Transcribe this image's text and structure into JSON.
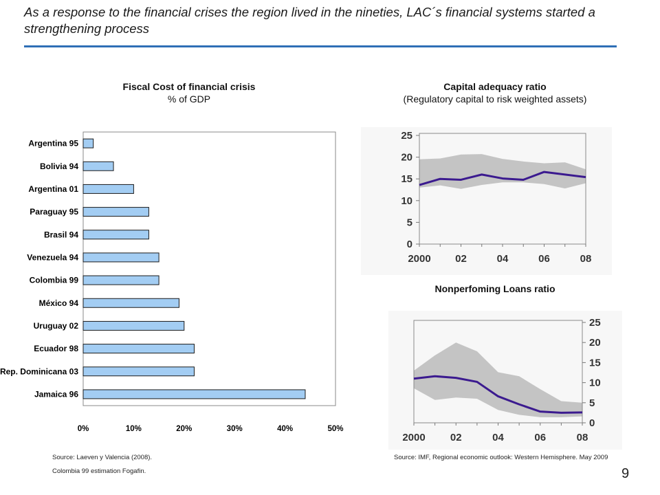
{
  "slide": {
    "title": "As a response to the financial crises the region lived in the nineties, LAC´s financial systems started a strengthening process",
    "page_number": "9"
  },
  "left": {
    "title": "Fiscal Cost of financial crisis",
    "subtitle": "% of GDP",
    "source_line1": "Source: Laeven y Valencia (2008).",
    "source_line2": "Colombia 99 estimation Fogafin."
  },
  "right": {
    "car_title": "Capital adequacy ratio",
    "car_subtitle": "(Regulatory capital to risk weighted assets)",
    "npl_title": "Nonperfoming Loans ratio",
    "source": "Source: IMF, Regional economic outlook: Western Hemisphere. May 2009"
  },
  "colors": {
    "bar_fill": "#a3cdf3",
    "bar_stroke": "#1a1a1a",
    "line": "#3b1a8f",
    "band": "#c4c4c4",
    "rule": "#2f6fb6"
  },
  "chart_data": [
    {
      "type": "bar",
      "orientation": "horizontal",
      "title": "Fiscal Cost of financial crisis",
      "subtitle": "% of GDP",
      "categories": [
        "Argentina 95",
        "Bolivia 94",
        "Argentina 01",
        "Paraguay 95",
        "Brasil 94",
        "Venezuela 94",
        "Colombia 99",
        "México 94",
        "Uruguay  02",
        "Ecuador 98",
        "Rep. Dominicana 03",
        "Jamaica 96"
      ],
      "values": [
        2,
        6,
        10,
        13,
        13,
        15,
        15,
        19,
        20,
        22,
        22,
        44
      ],
      "unit": "%",
      "xlim": [
        0,
        50
      ],
      "xticks": [
        "0%",
        "10%",
        "20%",
        "30%",
        "40%",
        "50%"
      ],
      "grid": false
    },
    {
      "type": "line",
      "title": "Capital adequacy ratio",
      "subtitle": "(Regulatory capital to risk weighted assets)",
      "x": [
        2000,
        2001,
        2002,
        2003,
        2004,
        2005,
        2006,
        2007,
        2008
      ],
      "xticks": [
        "2000",
        "02",
        "04",
        "06",
        "08"
      ],
      "ylim": [
        0,
        25
      ],
      "yticks": [
        "0",
        "5",
        "10",
        "15",
        "20",
        "25"
      ],
      "series": [
        {
          "values": [
            13.6,
            15.0,
            14.8,
            16.0,
            15.1,
            14.8,
            16.6,
            16.0,
            15.4
          ]
        }
      ],
      "band": {
        "upper": [
          19.5,
          19.7,
          20.6,
          20.7,
          19.6,
          19.0,
          18.6,
          18.8,
          17.2
        ],
        "lower": [
          13.0,
          13.5,
          12.7,
          13.6,
          14.2,
          14.2,
          13.8,
          12.8,
          14.0
        ]
      },
      "grid": false
    },
    {
      "type": "line",
      "title": "Nonperfoming Loans ratio",
      "x": [
        2000,
        2001,
        2002,
        2003,
        2004,
        2005,
        2006,
        2007,
        2008
      ],
      "xticks": [
        "2000",
        "02",
        "04",
        "06",
        "08"
      ],
      "ylim": [
        0,
        25
      ],
      "yticks": [
        "0",
        "5",
        "10",
        "15",
        "20",
        "25"
      ],
      "y_axis_side": "right",
      "series": [
        {
          "values": [
            11.0,
            11.6,
            11.2,
            10.2,
            6.6,
            4.6,
            2.8,
            2.5,
            2.6
          ]
        }
      ],
      "band": {
        "upper": [
          13.0,
          16.8,
          20.0,
          17.8,
          12.6,
          11.6,
          8.4,
          5.4,
          5.0
        ],
        "lower": [
          8.6,
          5.7,
          6.3,
          6.0,
          3.2,
          2.0,
          1.4,
          1.4,
          1.6
        ]
      },
      "grid": false
    }
  ]
}
